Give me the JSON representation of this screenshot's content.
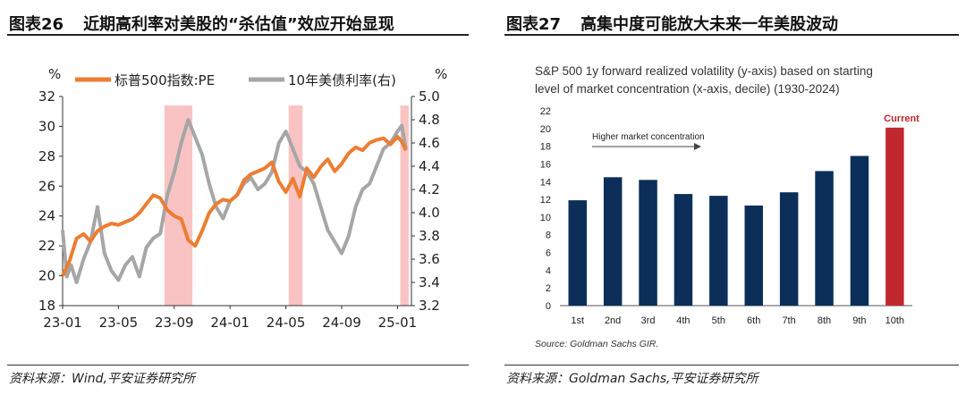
{
  "left": {
    "title_num": "图表26",
    "title_text": "近期高利率对美股的“杀估值”效应开始显现",
    "source": "资料来源：Wind,平安证券研究所"
  },
  "right": {
    "title_num": "图表27",
    "title_text": "高集中度可能放大未来一年美股波动",
    "source": "资料来源：Goldman Sachs,平安证券研究所"
  },
  "chart_data": [
    {
      "type": "line",
      "title": "",
      "y_unit_left": "%",
      "y_unit_right": "%",
      "ylim": [
        18,
        32
      ],
      "y2lim": [
        3.2,
        5.0
      ],
      "yticks": [
        "18",
        "20",
        "22",
        "24",
        "26",
        "28",
        "30",
        "32"
      ],
      "y2ticks": [
        "3.2",
        "3.4",
        "3.6",
        "3.8",
        "4.0",
        "4.2",
        "4.4",
        "4.6",
        "4.8",
        "5.0"
      ],
      "xticks": [
        "23-01",
        "23-05",
        "23-09",
        "24-01",
        "24-05",
        "24-09",
        "25-01"
      ],
      "shaded_periods": [
        {
          "start": 7.3,
          "end": 9.3,
          "color": "#f9c3c3"
        },
        {
          "start": 16.2,
          "end": 17.2,
          "color": "#f9c3c3"
        },
        {
          "start": 24.2,
          "end": 24.8,
          "color": "#f9c3c3"
        }
      ],
      "series": [
        {
          "name": "标普500指数:PE",
          "axis": "left",
          "color": "#ed7d31",
          "x": [
            0,
            0.5,
            1,
            1.5,
            2,
            2.5,
            3,
            3.5,
            4,
            4.5,
            5,
            5.5,
            6,
            6.5,
            7,
            7.5,
            8,
            8.5,
            9,
            9.5,
            10,
            10.5,
            11,
            11.5,
            12,
            12.5,
            13,
            13.5,
            14,
            14.5,
            15,
            15.5,
            16,
            16.5,
            17,
            17.5,
            18,
            18.5,
            19,
            19.5,
            20,
            20.5,
            21,
            21.5,
            22,
            22.5,
            23,
            23.5,
            24,
            24.3,
            24.6
          ],
          "values": [
            20.0,
            21.0,
            22.5,
            22.8,
            22.3,
            23.0,
            23.3,
            23.5,
            23.4,
            23.6,
            23.8,
            24.2,
            24.8,
            25.4,
            25.2,
            24.4,
            24.0,
            23.8,
            22.4,
            22.0,
            23.0,
            24.2,
            24.8,
            25.1,
            25.0,
            25.4,
            26.4,
            26.8,
            27.0,
            27.2,
            27.6,
            26.3,
            25.6,
            26.5,
            25.3,
            27.2,
            26.6,
            27.3,
            27.8,
            27.0,
            27.5,
            28.2,
            28.6,
            28.4,
            28.9,
            29.1,
            29.2,
            28.8,
            29.3,
            29.0,
            28.4
          ]
        },
        {
          "name": "10年美债利率(右)",
          "axis": "right",
          "color": "#a6a6a6",
          "x": [
            0,
            0.3,
            0.6,
            1,
            1.5,
            2,
            2.5,
            3,
            3.5,
            4,
            4.5,
            5,
            5.5,
            6,
            6.5,
            7,
            7.5,
            8,
            8.5,
            9,
            9.5,
            10,
            10.5,
            11,
            11.5,
            12,
            12.5,
            13,
            13.5,
            14,
            14.5,
            15,
            15.5,
            16,
            16.5,
            17,
            17.5,
            18,
            18.5,
            19,
            19.5,
            20,
            20.5,
            21,
            21.5,
            22,
            22.5,
            23,
            23.5,
            24,
            24.3,
            24.6
          ],
          "values": [
            3.85,
            3.45,
            3.55,
            3.4,
            3.6,
            3.75,
            4.05,
            3.65,
            3.5,
            3.42,
            3.55,
            3.62,
            3.45,
            3.7,
            3.78,
            3.82,
            4.15,
            4.35,
            4.6,
            4.8,
            4.65,
            4.5,
            4.25,
            4.05,
            3.95,
            4.1,
            4.15,
            4.25,
            4.3,
            4.2,
            4.25,
            4.35,
            4.6,
            4.7,
            4.55,
            4.4,
            4.35,
            4.25,
            4.05,
            3.85,
            3.75,
            3.65,
            3.8,
            4.05,
            4.2,
            4.25,
            4.4,
            4.55,
            4.6,
            4.7,
            4.75,
            4.55
          ]
        }
      ]
    },
    {
      "type": "bar",
      "title": "S&P 500 1y forward realized volatility (y-axis) based on starting level of market concentration (x-axis, decile) (1930-2024)",
      "title_lines": [
        "S&P 500 1y forward realized volatility (y-axis) based on starting",
        "level of market concentration (x-axis, decile) (1930-2024)"
      ],
      "categories": [
        "1st",
        "2nd",
        "3rd",
        "4th",
        "5th",
        "6th",
        "7th",
        "8th",
        "9th",
        "10th"
      ],
      "values": [
        11.9,
        14.5,
        14.2,
        12.6,
        12.4,
        11.3,
        12.8,
        15.2,
        16.9,
        20.1
      ],
      "colors": [
        "#0c2f5a",
        "#0c2f5a",
        "#0c2f5a",
        "#0c2f5a",
        "#0c2f5a",
        "#0c2f5a",
        "#0c2f5a",
        "#0c2f5a",
        "#0c2f5a",
        "#c0282d"
      ],
      "yticks": [
        "0",
        "2",
        "4",
        "6",
        "8",
        "10",
        "12",
        "14",
        "16",
        "18",
        "20",
        "22"
      ],
      "ylim": [
        0,
        22
      ],
      "annotation_current": "Current",
      "annotation_arrow": "Higher market concentration",
      "source_note": "Source: Goldman Sachs GIR.",
      "accent": "#c0282d"
    }
  ]
}
